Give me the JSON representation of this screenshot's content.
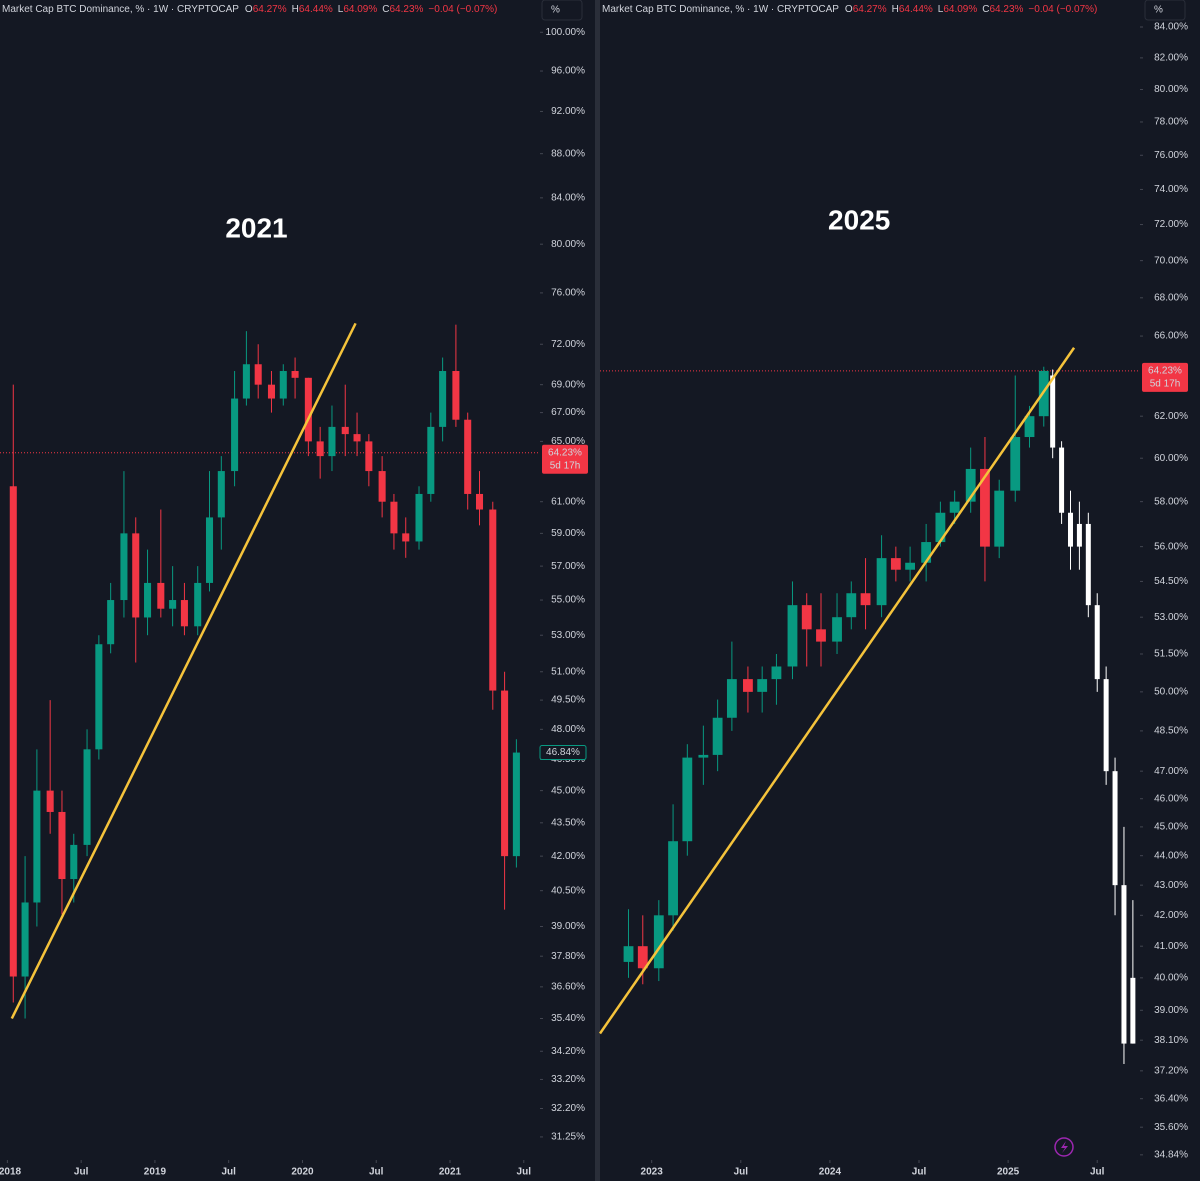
{
  "chart_data": [
    {
      "type": "candlestick",
      "log_scale": true,
      "grid": false,
      "up_color": "#089981",
      "down_color": "#f23645",
      "header": {
        "title": "Market Cap BTC Dominance, % · 1W · CRYPTOCAP",
        "ohlc": [
          {
            "key": "O",
            "text": "64.27%"
          },
          {
            "key": "H",
            "text": "64.44%"
          },
          {
            "key": "L",
            "text": "64.09%"
          },
          {
            "key": "C",
            "text": "64.23%"
          }
        ],
        "change": "−0.04 (−0.07%)"
      },
      "scale_button": "%",
      "annotation": "2021",
      "x": [
        2018.04,
        2018.12,
        2018.2,
        2018.29,
        2018.37,
        2018.45,
        2018.54,
        2018.62,
        2018.7,
        2018.79,
        2018.87,
        2018.95,
        2019.04,
        2019.12,
        2019.2,
        2019.29,
        2019.37,
        2019.45,
        2019.54,
        2019.62,
        2019.7,
        2019.79,
        2019.87,
        2019.95,
        2020.04,
        2020.12,
        2020.2,
        2020.29,
        2020.37,
        2020.45,
        2020.54,
        2020.62,
        2020.7,
        2020.79,
        2020.87,
        2020.95,
        2021.04,
        2021.12,
        2021.2,
        2021.29,
        2021.37,
        2021.45
      ],
      "open": [
        62,
        37,
        40,
        45,
        44,
        41,
        42.5,
        47,
        52.5,
        55,
        59,
        54,
        56,
        54.5,
        55,
        53.5,
        56,
        60,
        63,
        68,
        70.5,
        69,
        68,
        70,
        69.5,
        65,
        64,
        66,
        65.5,
        65,
        63,
        61,
        59,
        58.5,
        61.5,
        66,
        70,
        66.5,
        61.5,
        60.5,
        50,
        42
      ],
      "high": [
        69,
        42,
        47,
        49.5,
        45,
        43,
        48,
        53,
        56,
        63,
        60,
        58,
        60.5,
        57,
        56,
        57,
        63,
        64,
        70,
        73,
        72,
        70,
        70.5,
        71,
        69.5,
        66,
        67.5,
        69,
        67,
        65.5,
        64,
        61.5,
        60,
        62,
        67,
        71,
        73.5,
        67,
        63,
        61,
        51,
        47.5
      ],
      "low": [
        36,
        35.4,
        39,
        43,
        39.5,
        40,
        42,
        46.5,
        52,
        54,
        51.5,
        53,
        54,
        53.5,
        53,
        53,
        55.5,
        58,
        62,
        67.5,
        68,
        67,
        67.5,
        68,
        64,
        62.5,
        63,
        64,
        64,
        62,
        60,
        58,
        57.5,
        58,
        61,
        65,
        66,
        60.5,
        59.5,
        49,
        39.7,
        41.5
      ],
      "close": [
        37,
        40,
        45,
        44,
        41,
        42.5,
        47,
        52.5,
        55,
        59,
        54,
        56,
        54.5,
        55,
        53.5,
        56,
        60,
        63,
        68,
        70.5,
        69,
        68,
        70,
        69.5,
        65,
        64,
        66,
        65.5,
        65,
        63,
        61,
        59,
        58.5,
        61.5,
        66,
        70,
        66.5,
        61.5,
        60.5,
        50,
        42,
        46.84
      ],
      "trendline": {
        "x": [
          2018.03,
          2020.36
        ],
        "y": [
          35.4,
          73.6
        ],
        "color": "#f5c33b"
      },
      "price_line": {
        "value": 64.23,
        "label": "64.23%",
        "countdown": "5d 17h",
        "color": "#f23645"
      },
      "last_label": {
        "value": 46.84,
        "label": "46.84%",
        "color": "#089981"
      },
      "xlim": [
        2017.95,
        2021.61
      ],
      "xticks": [
        2018,
        {
          "value": 2018.5,
          "label": "Jul"
        },
        2019,
        {
          "value": 2019.5,
          "label": "Jul"
        },
        2020,
        {
          "value": 2020.5,
          "label": "Jul"
        },
        2021,
        {
          "value": 2021.5,
          "label": "Jul"
        }
      ],
      "ylim": [
        30.5,
        101.3
      ],
      "yticks": [
        {
          "value": 100,
          "label": "100.00%"
        },
        {
          "value": 96,
          "label": "96.00%"
        },
        {
          "value": 92,
          "label": "92.00%"
        },
        {
          "value": 88,
          "label": "88.00%"
        },
        {
          "value": 84,
          "label": "84.00%"
        },
        {
          "value": 80,
          "label": "80.00%"
        },
        {
          "value": 76,
          "label": "76.00%"
        },
        {
          "value": 72,
          "label": "72.00%"
        },
        {
          "value": 69,
          "label": "69.00%"
        },
        {
          "value": 67,
          "label": "67.00%"
        },
        {
          "value": 65,
          "label": "65.00%"
        },
        {
          "value": 61,
          "label": "61.00%"
        },
        {
          "value": 59,
          "label": "59.00%"
        },
        {
          "value": 57,
          "label": "57.00%"
        },
        {
          "value": 55,
          "label": "55.00%"
        },
        {
          "value": 53,
          "label": "53.00%"
        },
        {
          "value": 51,
          "label": "51.00%"
        },
        {
          "value": 49.5,
          "label": "49.50%"
        },
        {
          "value": 48,
          "label": "48.00%"
        },
        {
          "value": 46.5,
          "label": "46.50%"
        },
        {
          "value": 45,
          "label": "45.00%"
        },
        {
          "value": 43.5,
          "label": "43.50%"
        },
        {
          "value": 42,
          "label": "42.00%"
        },
        {
          "value": 40.5,
          "label": "40.50%"
        },
        {
          "value": 39,
          "label": "39.00%"
        },
        {
          "value": 37.8,
          "label": "37.80%"
        },
        {
          "value": 36.6,
          "label": "36.60%"
        },
        {
          "value": 35.4,
          "label": "35.40%"
        },
        {
          "value": 34.2,
          "label": "34.20%"
        },
        {
          "value": 33.2,
          "label": "33.20%"
        },
        {
          "value": 32.2,
          "label": "32.20%"
        },
        {
          "value": 31.25,
          "label": "31.25%"
        }
      ]
    },
    {
      "type": "candlestick",
      "log_scale": true,
      "grid": false,
      "up_color": "#089981",
      "down_color": "#f23645",
      "header": {
        "title": "Market Cap BTC Dominance, % · 1W · CRYPTOCAP",
        "ohlc": [
          {
            "key": "O",
            "text": "64.27%"
          },
          {
            "key": "H",
            "text": "64.44%"
          },
          {
            "key": "L",
            "text": "64.09%"
          },
          {
            "key": "C",
            "text": "64.23%"
          }
        ],
        "change": "−0.04 (−0.07%)"
      },
      "scale_button": "%",
      "annotation": "2025",
      "x": [
        2022.87,
        2022.95,
        2023.04,
        2023.12,
        2023.2,
        2023.29,
        2023.37,
        2023.45,
        2023.54,
        2023.62,
        2023.7,
        2023.79,
        2023.87,
        2023.95,
        2024.04,
        2024.12,
        2024.2,
        2024.29,
        2024.37,
        2024.45,
        2024.54,
        2024.62,
        2024.7,
        2024.79,
        2024.87,
        2024.95,
        2025.04,
        2025.12,
        2025.2
      ],
      "open": [
        40.5,
        41,
        40.3,
        42,
        44.5,
        47.5,
        47.6,
        49,
        50.5,
        50,
        50.5,
        51,
        53.5,
        52.5,
        52,
        53,
        54,
        53.5,
        55.5,
        55,
        55.3,
        56.2,
        57.5,
        58,
        59.5,
        56,
        58.5,
        61,
        62
      ],
      "high": [
        42.2,
        42,
        42.5,
        45.8,
        48,
        48.7,
        49.7,
        52,
        51,
        51,
        51.5,
        54.5,
        54,
        54,
        54,
        54.5,
        55.5,
        56.5,
        56,
        56,
        57,
        58,
        58.5,
        60.5,
        61,
        59,
        64,
        62.5,
        64.44
      ],
      "low": [
        40,
        39.8,
        39.9,
        41.5,
        44,
        46.5,
        47,
        48.5,
        49.2,
        49.2,
        49.5,
        50.5,
        51,
        51,
        51.5,
        52.5,
        52.5,
        53,
        54.5,
        54.5,
        54.5,
        56,
        57,
        57.5,
        54.5,
        55.5,
        58,
        60.5,
        61.5
      ],
      "close": [
        41,
        40.3,
        42,
        44.5,
        47.5,
        47.6,
        49,
        50.5,
        50,
        50.5,
        51,
        53.5,
        52.5,
        52,
        53,
        54,
        53.5,
        55.5,
        55,
        55.3,
        56.2,
        57.5,
        58,
        59.5,
        56,
        58.5,
        61,
        62,
        64.23
      ],
      "projection": {
        "color": "#ffffff",
        "x": [
          2025.25,
          2025.3,
          2025.35,
          2025.4,
          2025.45,
          2025.5,
          2025.55,
          2025.6,
          2025.65,
          2025.7
        ],
        "open": [
          64,
          60.5,
          57.5,
          56,
          57,
          53.5,
          50.5,
          47,
          43,
          38
        ],
        "high": [
          64.3,
          60.8,
          58.5,
          58,
          57.5,
          54,
          51,
          47.5,
          45,
          42.5
        ],
        "low": [
          60,
          57,
          55,
          55,
          53,
          50,
          46.5,
          42,
          37.4,
          38
        ],
        "close": [
          60.5,
          57.5,
          56,
          57,
          53.5,
          50.5,
          47,
          43,
          38,
          40
        ]
      },
      "trendline": {
        "x": [
          2022.71,
          2025.37
        ],
        "y": [
          38.3,
          65.4
        ],
        "color": "#f5c33b"
      },
      "price_line": {
        "value": 64.23,
        "label": "64.23%",
        "countdown": "5d 17h",
        "color": "#f23645"
      },
      "xlim": [
        2022.71,
        2025.74
      ],
      "xticks": [
        2023,
        {
          "value": 2023.5,
          "label": "Jul"
        },
        2024,
        {
          "value": 2024.5,
          "label": "Jul"
        },
        2025,
        {
          "value": 2025.5,
          "label": "Jul"
        }
      ],
      "ylim": [
        34.7,
        84.46
      ],
      "yticks": [
        {
          "value": 84,
          "label": "84.00%"
        },
        {
          "value": 82,
          "label": "82.00%"
        },
        {
          "value": 80,
          "label": "80.00%"
        },
        {
          "value": 78,
          "label": "78.00%"
        },
        {
          "value": 76,
          "label": "76.00%"
        },
        {
          "value": 74,
          "label": "74.00%"
        },
        {
          "value": 72,
          "label": "72.00%"
        },
        {
          "value": 70,
          "label": "70.00%"
        },
        {
          "value": 68,
          "label": "68.00%"
        },
        {
          "value": 66,
          "label": "66.00%"
        },
        {
          "value": 62,
          "label": "62.00%"
        },
        {
          "value": 60,
          "label": "60.00%"
        },
        {
          "value": 58,
          "label": "58.00%"
        },
        {
          "value": 56,
          "label": "56.00%"
        },
        {
          "value": 54.5,
          "label": "54.50%"
        },
        {
          "value": 53,
          "label": "53.00%"
        },
        {
          "value": 51.5,
          "label": "51.50%"
        },
        {
          "value": 50,
          "label": "50.00%"
        },
        {
          "value": 48.5,
          "label": "48.50%"
        },
        {
          "value": 47,
          "label": "47.00%"
        },
        {
          "value": 46,
          "label": "46.00%"
        },
        {
          "value": 45,
          "label": "45.00%"
        },
        {
          "value": 44,
          "label": "44.00%"
        },
        {
          "value": 43,
          "label": "43.00%"
        },
        {
          "value": 42,
          "label": "42.00%"
        },
        {
          "value": 41,
          "label": "41.00%"
        },
        {
          "value": 40,
          "label": "40.00%"
        },
        {
          "value": 39,
          "label": "39.00%"
        },
        {
          "value": 38.1,
          "label": "38.10%"
        },
        {
          "value": 37.2,
          "label": "37.20%"
        },
        {
          "value": 36.4,
          "label": "36.40%"
        },
        {
          "value": 35.6,
          "label": "35.60%"
        },
        {
          "value": 34.84,
          "label": "34.84%"
        }
      ]
    }
  ]
}
